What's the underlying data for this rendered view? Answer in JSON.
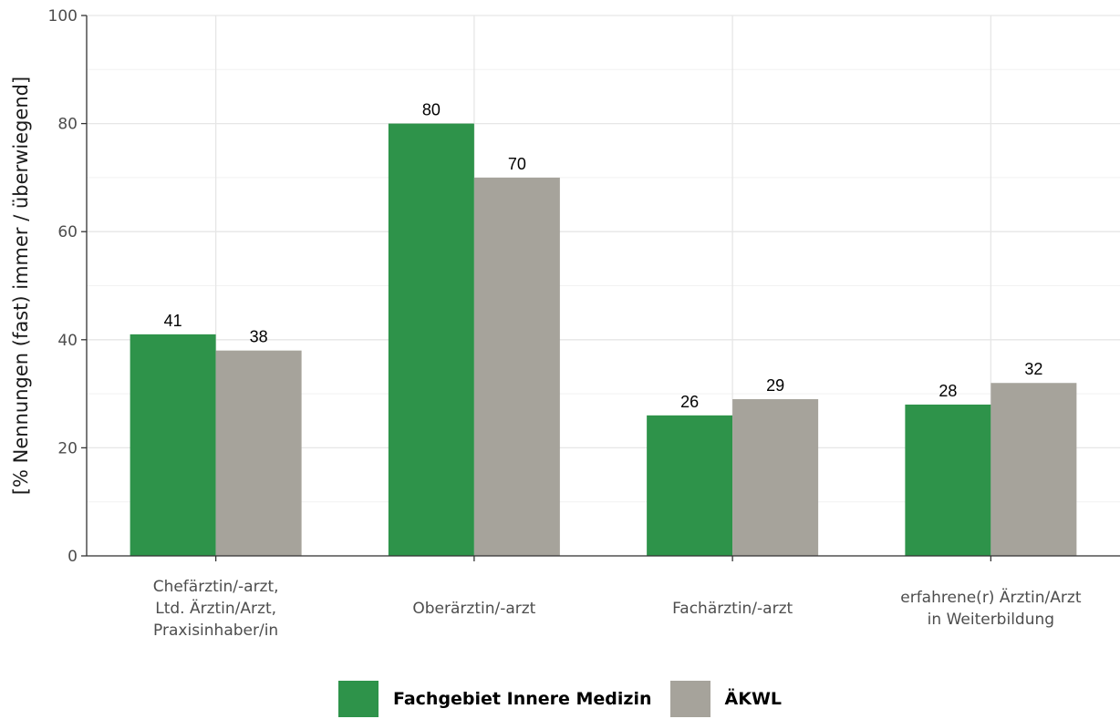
{
  "chart_data": {
    "type": "bar",
    "categories": [
      [
        "Chefärztin/-arzt,",
        "Ltd. Ärztin/Arzt,",
        "Praxisinhaber/in"
      ],
      [
        "Oberärztin/-arzt"
      ],
      [
        "Fachärztin/-arzt"
      ],
      [
        "erfahrene(r) Ärztin/Arzt",
        "in Weiterbildung"
      ]
    ],
    "series": [
      {
        "name": "Fachgebiet Innere Medizin",
        "color": "#2e934a",
        "values": [
          41,
          80,
          26,
          28
        ],
        "labels": [
          "41",
          "80",
          "26",
          "28"
        ]
      },
      {
        "name": "ÄKWL",
        "color": "#a6a39b",
        "values": [
          38,
          70,
          29,
          32
        ],
        "labels": [
          "38",
          "70",
          "29",
          "32"
        ]
      }
    ],
    "ylabel": "[% Nennungen (fast) immer / überwiegend]",
    "xlabel": "",
    "ylim": [
      0,
      100
    ],
    "yticks": [
      0,
      20,
      40,
      60,
      80,
      100
    ],
    "ytick_labels": [
      "0",
      "20",
      "40",
      "60",
      "80",
      "100"
    ],
    "grid": true,
    "legend_position": "bottom"
  }
}
